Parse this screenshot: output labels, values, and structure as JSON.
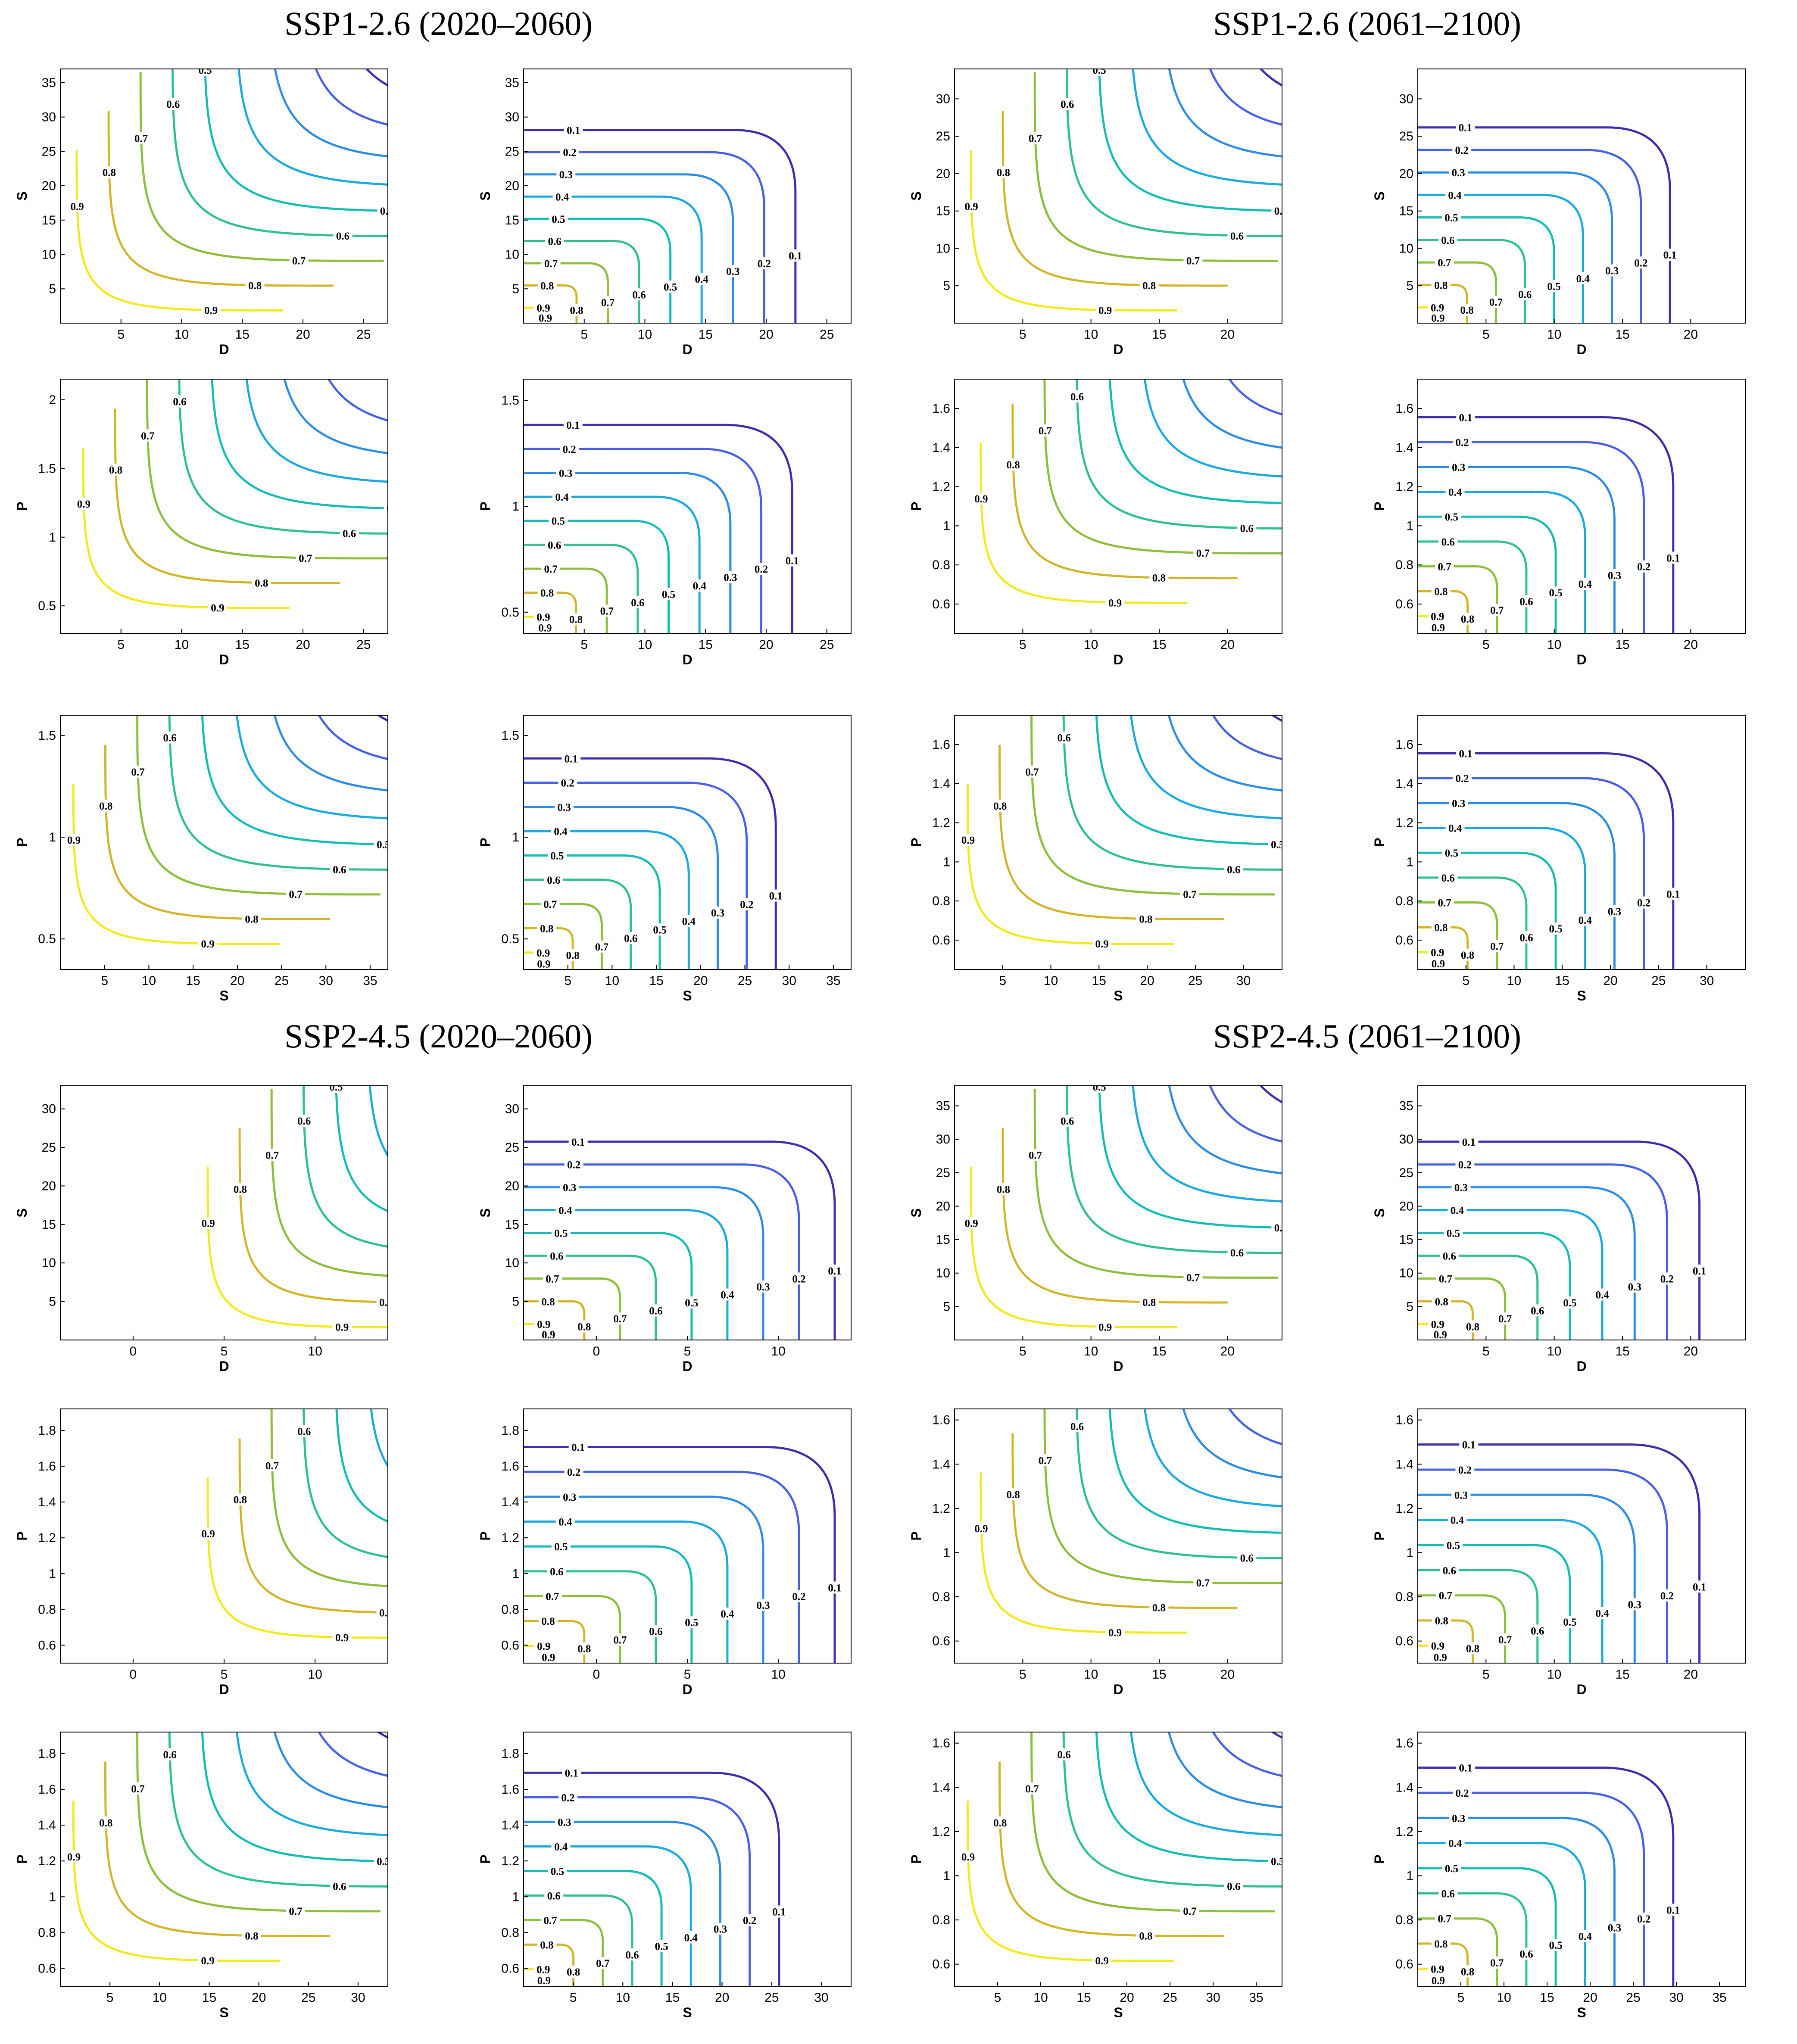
{
  "colors": {
    "levels": {
      "0.1": "#3d2eb0",
      "0.2": "#4760e8",
      "0.3": "#2c8de6",
      "0.4": "#1aaadf",
      "0.5": "#14bdb3",
      "0.6": "#2ec28a",
      "0.7": "#8dbe3c",
      "0.8": "#d3b52c",
      "0.9": "#f2ea1e"
    },
    "axis": "#000000",
    "background": "#ffffff"
  },
  "groups": [
    {
      "title": "SSP1-2.6 (2020–2060)"
    },
    {
      "title": "SSP1-2.6 (2061–2100)"
    },
    {
      "title": "SSP2-4.5 (2020–2060)"
    },
    {
      "title": "SSP2-4.5 (2061–2100)"
    }
  ],
  "chart_data": [
    {
      "type": "contour",
      "group": 0,
      "pos": "row1-left",
      "style": "hyper",
      "xlabel": "D",
      "ylabel": "S",
      "xlim": [
        0,
        27
      ],
      "ylim": [
        0,
        37
      ],
      "xticks": [
        5,
        10,
        15,
        20,
        25
      ],
      "yticks": [
        5,
        10,
        15,
        20,
        25,
        30,
        35
      ],
      "levels": [
        0.1,
        0.2,
        0.3,
        0.4,
        0.5,
        0.6,
        0.7,
        0.8,
        0.9
      ],
      "xmin_f": 0.05,
      "ymin_f": 0.05
    },
    {
      "type": "contour",
      "group": 0,
      "pos": "row1-right",
      "style": "quarter",
      "xlabel": "D",
      "ylabel": "S",
      "xlim": [
        0,
        27
      ],
      "ylim": [
        0,
        37
      ],
      "xticks": [
        5,
        10,
        15,
        20,
        25
      ],
      "yticks": [
        5,
        10,
        15,
        20,
        25,
        30,
        35
      ],
      "levels": [
        0.1,
        0.2,
        0.3,
        0.4,
        0.5,
        0.6,
        0.7,
        0.8,
        0.9
      ],
      "xmax_f": 0.83,
      "ymax_f": 0.76
    },
    {
      "type": "contour",
      "group": 1,
      "pos": "row1-left",
      "style": "hyper",
      "xlabel": "D",
      "ylabel": "S",
      "xlim": [
        0,
        24
      ],
      "ylim": [
        0,
        34
      ],
      "xticks": [
        5,
        10,
        15,
        20
      ],
      "yticks": [
        5,
        10,
        15,
        20,
        25,
        30
      ],
      "levels": [
        0.1,
        0.2,
        0.3,
        0.4,
        0.5,
        0.6,
        0.7,
        0.8,
        0.9
      ],
      "xmin_f": 0.05,
      "ymin_f": 0.05
    },
    {
      "type": "contour",
      "group": 1,
      "pos": "row1-right",
      "style": "quarter",
      "xlabel": "D",
      "ylabel": "S",
      "xlim": [
        0,
        24
      ],
      "ylim": [
        0,
        34
      ],
      "xticks": [
        5,
        10,
        15,
        20
      ],
      "yticks": [
        5,
        10,
        15,
        20,
        25,
        30
      ],
      "levels": [
        0.1,
        0.2,
        0.3,
        0.4,
        0.5,
        0.6,
        0.7,
        0.8,
        0.9
      ],
      "xmax_f": 0.77,
      "ymax_f": 0.77
    },
    {
      "type": "contour",
      "group": 0,
      "pos": "row2-left",
      "style": "hyper",
      "xlabel": "D",
      "ylabel": "P",
      "xlim": [
        0,
        27
      ],
      "ylim": [
        0.3,
        2.15
      ],
      "xticks": [
        5,
        10,
        15,
        20,
        25
      ],
      "yticks": [
        0.5,
        1,
        1.5,
        2
      ],
      "levels": [
        0.1,
        0.2,
        0.3,
        0.4,
        0.5,
        0.6,
        0.7,
        0.8,
        0.9
      ],
      "xmin_f": 0.07,
      "ymin_f": 0.1
    },
    {
      "type": "contour",
      "group": 0,
      "pos": "row2-right",
      "style": "quarter",
      "xlabel": "D",
      "ylabel": "P",
      "xlim": [
        0,
        27
      ],
      "ylim": [
        0.4,
        1.6
      ],
      "xticks": [
        5,
        10,
        15,
        20,
        25
      ],
      "yticks": [
        0.5,
        1,
        1.5
      ],
      "levels": [
        0.1,
        0.2,
        0.3,
        0.4,
        0.5,
        0.6,
        0.7,
        0.8,
        0.9
      ],
      "xmax_f": 0.82,
      "ymax_f": 0.82
    },
    {
      "type": "contour",
      "group": 1,
      "pos": "row2-left",
      "style": "hyper",
      "xlabel": "D",
      "ylabel": "P",
      "xlim": [
        0,
        24
      ],
      "ylim": [
        0.45,
        1.75
      ],
      "xticks": [
        5,
        10,
        15,
        20
      ],
      "yticks": [
        0.6,
        0.8,
        1,
        1.2,
        1.4,
        1.6
      ],
      "levels": [
        0.1,
        0.2,
        0.3,
        0.4,
        0.5,
        0.6,
        0.7,
        0.8,
        0.9
      ],
      "xmin_f": 0.08,
      "ymin_f": 0.12
    },
    {
      "type": "contour",
      "group": 1,
      "pos": "row2-right",
      "style": "quarter",
      "xlabel": "D",
      "ylabel": "P",
      "xlim": [
        0,
        24
      ],
      "ylim": [
        0.45,
        1.75
      ],
      "xticks": [
        5,
        10,
        15,
        20
      ],
      "yticks": [
        0.6,
        0.8,
        1,
        1.2,
        1.4,
        1.6
      ],
      "levels": [
        0.1,
        0.2,
        0.3,
        0.4,
        0.5,
        0.6,
        0.7,
        0.8,
        0.9
      ],
      "xmax_f": 0.78,
      "ymax_f": 0.85
    },
    {
      "type": "contour",
      "group": 0,
      "pos": "row3-left",
      "style": "hyper",
      "xlabel": "S",
      "ylabel": "P",
      "xlim": [
        0,
        37
      ],
      "ylim": [
        0.35,
        1.6
      ],
      "xticks": [
        5,
        10,
        15,
        20,
        25,
        30,
        35
      ],
      "yticks": [
        0.5,
        1,
        1.5
      ],
      "levels": [
        0.1,
        0.2,
        0.3,
        0.4,
        0.5,
        0.6,
        0.7,
        0.8,
        0.9
      ],
      "xmin_f": 0.04,
      "ymin_f": 0.1
    },
    {
      "type": "contour",
      "group": 0,
      "pos": "row3-right",
      "style": "quarter",
      "xlabel": "S",
      "ylabel": "P",
      "xlim": [
        0,
        37
      ],
      "ylim": [
        0.35,
        1.6
      ],
      "xticks": [
        5,
        10,
        15,
        20,
        25,
        30,
        35
      ],
      "yticks": [
        0.5,
        1,
        1.5
      ],
      "levels": [
        0.1,
        0.2,
        0.3,
        0.4,
        0.5,
        0.6,
        0.7,
        0.8,
        0.9
      ],
      "xmax_f": 0.77,
      "ymax_f": 0.83
    },
    {
      "type": "contour",
      "group": 1,
      "pos": "row3-left",
      "style": "hyper",
      "xlabel": "S",
      "ylabel": "P",
      "xlim": [
        0,
        34
      ],
      "ylim": [
        0.45,
        1.75
      ],
      "xticks": [
        5,
        10,
        15,
        20,
        25,
        30
      ],
      "yticks": [
        0.6,
        0.8,
        1,
        1.2,
        1.4,
        1.6
      ],
      "levels": [
        0.1,
        0.2,
        0.3,
        0.4,
        0.5,
        0.6,
        0.7,
        0.8,
        0.9
      ],
      "xmin_f": 0.04,
      "ymin_f": 0.1
    },
    {
      "type": "contour",
      "group": 1,
      "pos": "row3-right",
      "style": "quarter",
      "xlabel": "S",
      "ylabel": "P",
      "xlim": [
        0,
        34
      ],
      "ylim": [
        0.45,
        1.75
      ],
      "xticks": [
        5,
        10,
        15,
        20,
        25,
        30
      ],
      "yticks": [
        0.6,
        0.8,
        1,
        1.2,
        1.4,
        1.6
      ],
      "levels": [
        0.1,
        0.2,
        0.3,
        0.4,
        0.5,
        0.6,
        0.7,
        0.8,
        0.9
      ],
      "xmax_f": 0.78,
      "ymax_f": 0.85
    },
    {
      "type": "contour",
      "group": 2,
      "pos": "row4-left",
      "style": "hyper",
      "xlabel": "D",
      "ylabel": "S",
      "xlim": [
        -4,
        14
      ],
      "ylim": [
        0,
        33
      ],
      "xticks": [
        0,
        5,
        10
      ],
      "yticks": [
        5,
        10,
        15,
        20,
        25,
        30
      ],
      "levels": [
        0.1,
        0.2,
        0.3,
        0.4,
        0.5,
        0.6,
        0.7,
        0.8,
        0.9
      ],
      "xmin_f": 0.45,
      "ymin_f": 0.05
    },
    {
      "type": "contour",
      "group": 2,
      "pos": "row4-right",
      "style": "quarter",
      "xlabel": "D",
      "ylabel": "S",
      "xlim": [
        -4,
        14
      ],
      "ylim": [
        0,
        33
      ],
      "xticks": [
        0,
        5,
        10
      ],
      "yticks": [
        5,
        10,
        15,
        20,
        25,
        30
      ],
      "levels": [
        0.1,
        0.2,
        0.3,
        0.4,
        0.5,
        0.6,
        0.7,
        0.8,
        0.9
      ],
      "xmax_f": 0.95,
      "ymax_f": 0.78
    },
    {
      "type": "contour",
      "group": 3,
      "pos": "row4-left",
      "style": "hyper",
      "xlabel": "D",
      "ylabel": "S",
      "xlim": [
        0,
        24
      ],
      "ylim": [
        0,
        38
      ],
      "xticks": [
        5,
        10,
        15,
        20
      ],
      "yticks": [
        5,
        10,
        15,
        20,
        25,
        30,
        35
      ],
      "levels": [
        0.1,
        0.2,
        0.3,
        0.4,
        0.5,
        0.6,
        0.7,
        0.8,
        0.9
      ],
      "xmin_f": 0.05,
      "ymin_f": 0.05
    },
    {
      "type": "contour",
      "group": 3,
      "pos": "row4-right",
      "style": "quarter",
      "xlabel": "D",
      "ylabel": "S",
      "xlim": [
        0,
        24
      ],
      "ylim": [
        0,
        38
      ],
      "xticks": [
        5,
        10,
        15,
        20
      ],
      "yticks": [
        5,
        10,
        15,
        20,
        25,
        30,
        35
      ],
      "levels": [
        0.1,
        0.2,
        0.3,
        0.4,
        0.5,
        0.6,
        0.7,
        0.8,
        0.9
      ],
      "xmax_f": 0.86,
      "ymax_f": 0.78
    },
    {
      "type": "contour",
      "group": 2,
      "pos": "row5-left",
      "style": "hyper",
      "xlabel": "D",
      "ylabel": "P",
      "xlim": [
        -4,
        14
      ],
      "ylim": [
        0.5,
        1.92
      ],
      "xticks": [
        0,
        5,
        10
      ],
      "yticks": [
        0.6,
        0.8,
        1,
        1.2,
        1.4,
        1.6,
        1.8
      ],
      "levels": [
        0.1,
        0.2,
        0.3,
        0.4,
        0.5,
        0.6,
        0.7,
        0.8,
        0.9
      ],
      "xmin_f": 0.45,
      "ymin_f": 0.1
    },
    {
      "type": "contour",
      "group": 2,
      "pos": "row5-right",
      "style": "quarter",
      "xlabel": "D",
      "ylabel": "P",
      "xlim": [
        -4,
        14
      ],
      "ylim": [
        0.5,
        1.92
      ],
      "xticks": [
        0,
        5,
        10
      ],
      "yticks": [
        0.6,
        0.8,
        1,
        1.2,
        1.4,
        1.6,
        1.8
      ],
      "levels": [
        0.1,
        0.2,
        0.3,
        0.4,
        0.5,
        0.6,
        0.7,
        0.8,
        0.9
      ],
      "xmax_f": 0.95,
      "ymax_f": 0.85
    },
    {
      "type": "contour",
      "group": 3,
      "pos": "row5-left",
      "style": "hyper",
      "xlabel": "D",
      "ylabel": "P",
      "xlim": [
        0,
        24
      ],
      "ylim": [
        0.5,
        1.65
      ],
      "xticks": [
        5,
        10,
        15,
        20
      ],
      "yticks": [
        0.6,
        0.8,
        1,
        1.2,
        1.4,
        1.6
      ],
      "levels": [
        0.1,
        0.2,
        0.3,
        0.4,
        0.5,
        0.6,
        0.7,
        0.8,
        0.9
      ],
      "xmin_f": 0.08,
      "ymin_f": 0.12
    },
    {
      "type": "contour",
      "group": 3,
      "pos": "row5-right",
      "style": "quarter",
      "xlabel": "D",
      "ylabel": "P",
      "xlim": [
        0,
        24
      ],
      "ylim": [
        0.5,
        1.65
      ],
      "xticks": [
        5,
        10,
        15,
        20
      ],
      "yticks": [
        0.6,
        0.8,
        1,
        1.2,
        1.4,
        1.6
      ],
      "levels": [
        0.1,
        0.2,
        0.3,
        0.4,
        0.5,
        0.6,
        0.7,
        0.8,
        0.9
      ],
      "xmax_f": 0.86,
      "ymax_f": 0.86
    },
    {
      "type": "contour",
      "group": 2,
      "pos": "row6-left",
      "style": "hyper",
      "xlabel": "S",
      "ylabel": "P",
      "xlim": [
        0,
        33
      ],
      "ylim": [
        0.5,
        1.92
      ],
      "xticks": [
        5,
        10,
        15,
        20,
        25,
        30
      ],
      "yticks": [
        0.6,
        0.8,
        1,
        1.2,
        1.4,
        1.6,
        1.8
      ],
      "levels": [
        0.1,
        0.2,
        0.3,
        0.4,
        0.5,
        0.6,
        0.7,
        0.8,
        0.9
      ],
      "xmin_f": 0.04,
      "ymin_f": 0.1
    },
    {
      "type": "contour",
      "group": 2,
      "pos": "row6-right",
      "style": "quarter",
      "xlabel": "S",
      "ylabel": "P",
      "xlim": [
        0,
        33
      ],
      "ylim": [
        0.5,
        1.92
      ],
      "xticks": [
        5,
        10,
        15,
        20,
        25,
        30
      ],
      "yticks": [
        0.6,
        0.8,
        1,
        1.2,
        1.4,
        1.6,
        1.8
      ],
      "levels": [
        0.1,
        0.2,
        0.3,
        0.4,
        0.5,
        0.6,
        0.7,
        0.8,
        0.9
      ],
      "xmax_f": 0.78,
      "ymax_f": 0.84
    },
    {
      "type": "contour",
      "group": 3,
      "pos": "row6-left",
      "style": "hyper",
      "xlabel": "S",
      "ylabel": "P",
      "xlim": [
        0,
        38
      ],
      "ylim": [
        0.5,
        1.65
      ],
      "xticks": [
        5,
        10,
        15,
        20,
        25,
        30,
        35
      ],
      "yticks": [
        0.6,
        0.8,
        1,
        1.2,
        1.4,
        1.6
      ],
      "levels": [
        0.1,
        0.2,
        0.3,
        0.4,
        0.5,
        0.6,
        0.7,
        0.8,
        0.9
      ],
      "xmin_f": 0.04,
      "ymin_f": 0.1
    },
    {
      "type": "contour",
      "group": 3,
      "pos": "row6-right",
      "style": "quarter",
      "xlabel": "S",
      "ylabel": "P",
      "xlim": [
        0,
        38
      ],
      "ylim": [
        0.5,
        1.65
      ],
      "xticks": [
        5,
        10,
        15,
        20,
        25,
        30,
        35
      ],
      "yticks": [
        0.6,
        0.8,
        1,
        1.2,
        1.4,
        1.6
      ],
      "levels": [
        0.1,
        0.2,
        0.3,
        0.4,
        0.5,
        0.6,
        0.7,
        0.8,
        0.9
      ],
      "xmax_f": 0.78,
      "ymax_f": 0.86
    }
  ]
}
